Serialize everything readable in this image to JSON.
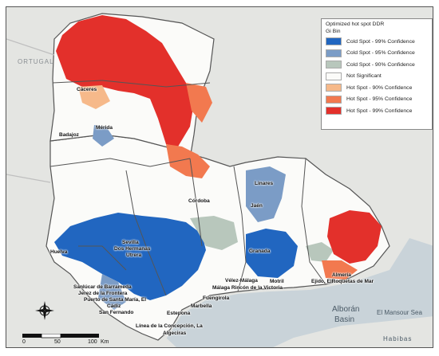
{
  "legend": {
    "title": "Optimized hot spot  DDR",
    "subtitle": "Gi Bin",
    "items": [
      {
        "label": "Cold Spot - 99% Confidence",
        "color": "#2166c0"
      },
      {
        "label": "Cold Spot - 95% Confidence",
        "color": "#7b9cc6"
      },
      {
        "label": "Cold Spot - 90% Confidence",
        "color": "#b8c7bc"
      },
      {
        "label": "Not Significant",
        "color": "#fbfbf9"
      },
      {
        "label": "Hot Spot - 90% Confidence",
        "color": "#f6b98a"
      },
      {
        "label": "Hot Spot - 95% Confidence",
        "color": "#f2794f"
      },
      {
        "label": "Hot Spot - 99% Confidence",
        "color": "#e3302b"
      }
    ]
  },
  "country_label": "ORTUGAL",
  "places": {
    "caceres": "Cáceres",
    "badajoz": "Badajoz",
    "merida": "Mérida",
    "cordoba": "Córdoba",
    "linares": "Linares",
    "jaen": "Jaén",
    "sevilla": "Sevilla",
    "dos_hermanas": "Dos Hermanas",
    "utrera": "Utrera",
    "huelva": "Huelva",
    "granada": "Granada",
    "almeria": "Almería",
    "elejido": "Ejido, ElRoquetas de Mar",
    "velez": "Vélez-Málaga",
    "rincon": "Málaga Rincón de la Victoria",
    "motril": "Motril",
    "sanlucar": "Sanlúcar de Barrameda",
    "jerez": "Jerez de la Frontera",
    "puerto": "Puerto de Santa María, El",
    "cadiz": "Cádiz",
    "san_fernando": "San Fernando",
    "estepona": "Estepona",
    "marbella": "Marbella",
    "fuengirola": "Fuengirola",
    "linea": "Línea de la Concepción, La",
    "algeciras": "Algeciras"
  },
  "sea": {
    "alboran": "Alborán",
    "basin": "Basin",
    "mansour": "El Mansour Sea",
    "habibas": "Habibas"
  },
  "scale": {
    "t0": "0",
    "t1": "50",
    "t2": "100",
    "unit": "Km"
  },
  "north_label": "N"
}
